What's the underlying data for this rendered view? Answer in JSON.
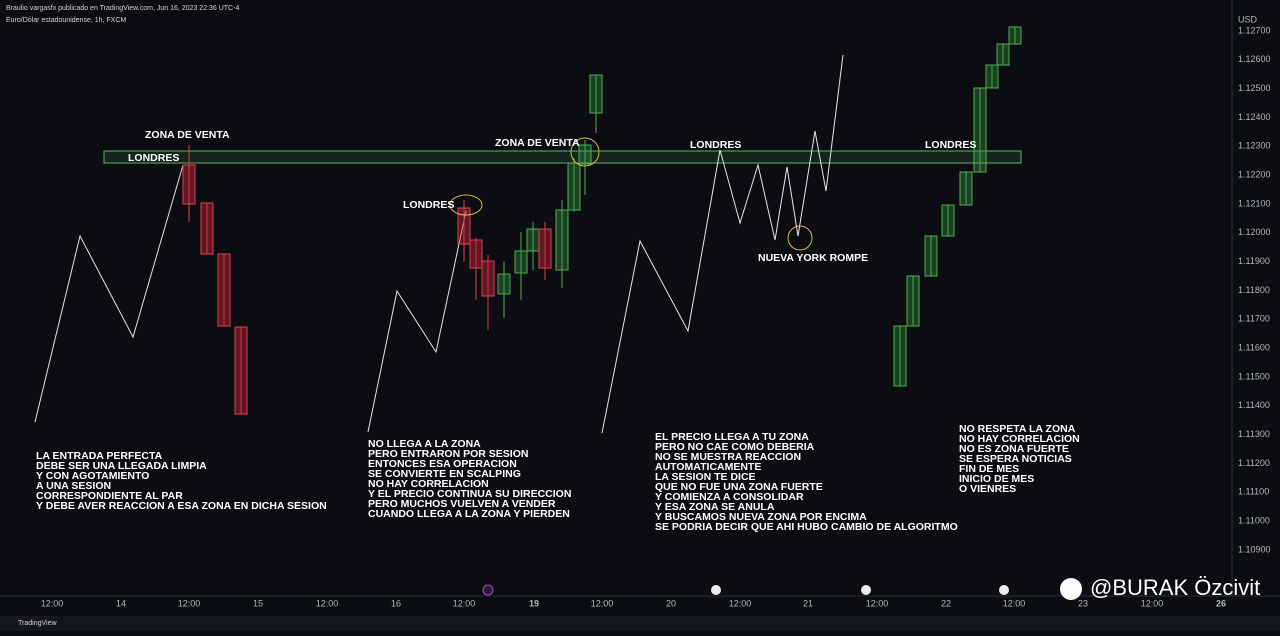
{
  "header": {
    "publisher": "Braulio vargasfx publicado en TradingView.com, Jun 16, 2023 22:36 UTC-4",
    "symbol": "Euro/Dólar estadounidense, 1h, FXCM",
    "currency": "USD"
  },
  "price_axis": [
    "1.12700",
    "1.12600",
    "1.12500",
    "1.12400",
    "1.12300",
    "1.12200",
    "1.12100",
    "1.12000",
    "1.11900",
    "1.11800",
    "1.11700",
    "1.11600",
    "1.11500",
    "1.11400",
    "1.11300",
    "1.11200",
    "1.11100",
    "1.11000",
    "1.10900"
  ],
  "time_axis": [
    "12:00",
    "14",
    "12:00",
    "15",
    "12:00",
    "16",
    "12:00",
    "19",
    "12:00",
    "20",
    "12:00",
    "21",
    "12:00",
    "22",
    "12:00",
    "23",
    "12:00",
    "26"
  ],
  "labels": [
    "ZONA DE VENTA",
    "LONDRES",
    "LONDRES",
    "ZONA DE VENTA",
    "LONDRES",
    "LONDRES",
    "NUEVA YORK  ROMPE"
  ],
  "notes": [
    {
      "lines": [
        "LA ENTRADA PERFECTA",
        "DEBE SER UNA LLEGADA LIMPIA",
        "Y CON AGOTAMIENTO",
        "A UNA SESION",
        "CORRESPONDIENTE AL PAR",
        "Y DEBE AVER REACCION A ESA ZONA EN DICHA SESION"
      ]
    },
    {
      "lines": [
        "NO LLEGA A LA ZONA",
        "PERO ENTRARON POR SESION",
        "ENTONCES ESA OPERACION",
        "SE CONVIERTE EN SCALPING",
        "NO HAY CORRELACION",
        "Y EL PRECIO CONTINUA SU DIRECCION",
        "PERO MUCHOS VUELVEN A VENDER",
        "CUANDO LLEGA A LA ZONA  Y PIERDEN"
      ]
    },
    {
      "lines": [
        "EL PRECIO LLEGA A TU ZONA",
        "PERO NO CAE COMO DEBERIA",
        "NO SE MUESTRA REACCION",
        "AUTOMATICAMENTE",
        "LA SESION TE DICE",
        "QUE NO FUE UNA ZONA FUERTE",
        "Y COMIENZA A CONSOLIDAR",
        "Y ESA ZONA SE ANULA",
        "Y BUSCAMOS NUEVA ZONA POR ENCIMA",
        "SE PODRIA DECIR QUE AHI HUBO CAMBIO DE ALGORITMO"
      ]
    },
    {
      "lines": [
        "NO RESPETA LA ZONA",
        "NO HAY CORRELACION",
        "NO ES ZONA FUERTE",
        "SE ESPERA NOTICIAS",
        "FIN DE MES",
        "INICIO DE MES",
        "O VIENRES"
      ]
    }
  ],
  "watermark": "@BURAK Özcivit",
  "footer": "TradingView"
}
